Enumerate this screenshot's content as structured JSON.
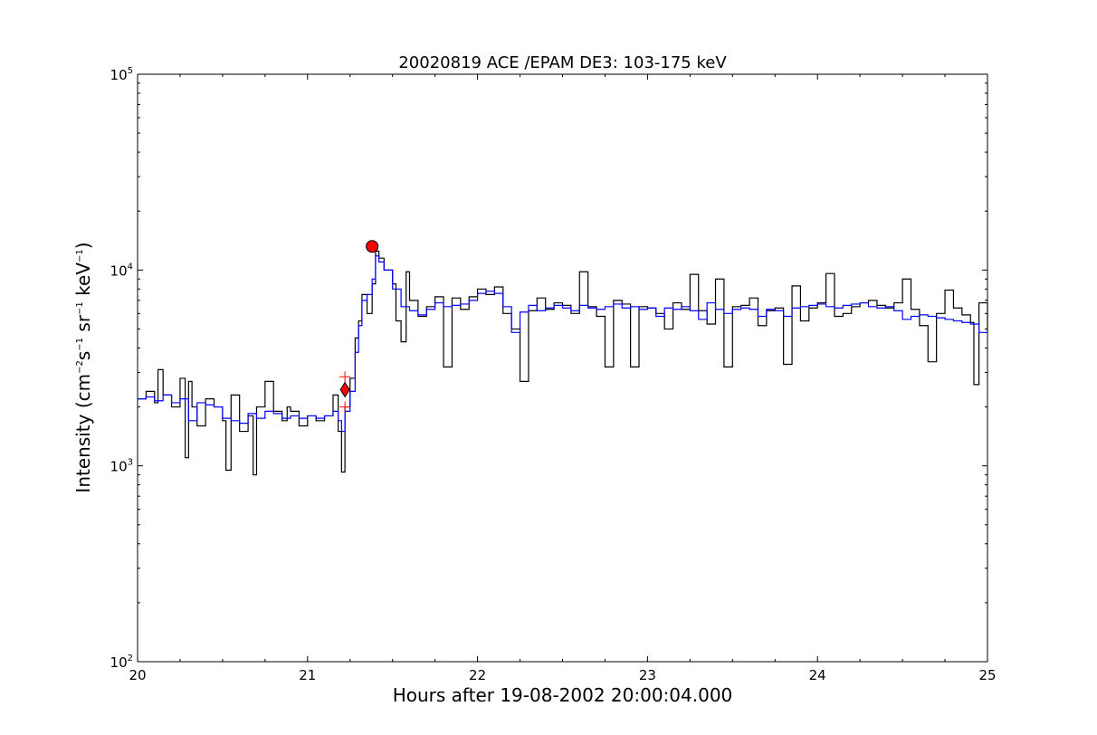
{
  "chart_data": {
    "type": "line",
    "title": "20020819 ACE /EPAM DE3: 103-175 keV",
    "xlabel": "Hours after 19-08-2002 20:00:04.000",
    "ylabel": {
      "lead": "Intensity (cm",
      "exp1": "−2",
      "mid1": "s",
      "exp2": "−1",
      "mid2": " sr",
      "exp3": "−1",
      "mid3": " keV",
      "exp4": "−1",
      "tail": ")"
    },
    "xlim": [
      20,
      25
    ],
    "ylim": [
      100,
      100000
    ],
    "yscale": "log",
    "grid": false,
    "x_ticks": [
      {
        "value": 20,
        "label": "20"
      },
      {
        "value": 21,
        "label": "21"
      },
      {
        "value": 22,
        "label": "22"
      },
      {
        "value": 23,
        "label": "23"
      },
      {
        "value": 24,
        "label": "24"
      },
      {
        "value": 25,
        "label": "25"
      }
    ],
    "y_ticks": [
      {
        "value": 100,
        "base": "10",
        "exp": "2"
      },
      {
        "value": 1000,
        "base": "10",
        "exp": "3"
      },
      {
        "value": 10000,
        "base": "10",
        "exp": "4"
      },
      {
        "value": 100000,
        "base": "10",
        "exp": "5"
      }
    ],
    "series": [
      {
        "style": "steps",
        "color": "#000000",
        "x": [
          20.0,
          20.05,
          20.1,
          20.12,
          20.15,
          20.2,
          20.25,
          20.28,
          20.3,
          20.32,
          20.35,
          20.4,
          20.45,
          20.5,
          20.52,
          20.55,
          20.6,
          20.65,
          20.68,
          20.7,
          20.75,
          20.8,
          20.85,
          20.88,
          20.9,
          20.95,
          21.0,
          21.05,
          21.1,
          21.15,
          21.18,
          21.2,
          21.22,
          21.25,
          21.28,
          21.3,
          21.32,
          21.35,
          21.38,
          21.4,
          21.42,
          21.45,
          21.5,
          21.52,
          21.55,
          21.58,
          21.6,
          21.65,
          21.7,
          21.75,
          21.8,
          21.85,
          21.9,
          21.95,
          22.0,
          22.05,
          22.1,
          22.15,
          22.2,
          22.25,
          22.3,
          22.35,
          22.4,
          22.45,
          22.5,
          22.55,
          22.6,
          22.65,
          22.7,
          22.75,
          22.8,
          22.85,
          22.9,
          22.95,
          23.0,
          23.05,
          23.1,
          23.15,
          23.2,
          23.25,
          23.3,
          23.35,
          23.4,
          23.45,
          23.5,
          23.55,
          23.6,
          23.65,
          23.7,
          23.75,
          23.8,
          23.85,
          23.9,
          23.95,
          24.0,
          24.05,
          24.1,
          24.15,
          24.2,
          24.25,
          24.3,
          24.35,
          24.4,
          24.45,
          24.5,
          24.55,
          24.6,
          24.65,
          24.7,
          24.75,
          24.8,
          24.85,
          24.9,
          24.92,
          24.95,
          25.0
        ],
        "y": [
          2200,
          2400,
          2100,
          3100,
          2300,
          2000,
          2800,
          1100,
          2700,
          2000,
          1600,
          2200,
          2000,
          1700,
          950,
          2300,
          1500,
          1800,
          900,
          2000,
          2700,
          1900,
          1700,
          2000,
          1900,
          1600,
          1800,
          1700,
          1800,
          2300,
          1500,
          930,
          2000,
          2800,
          4500,
          5500,
          7500,
          6000,
          8500,
          12500,
          11500,
          10000,
          8500,
          5500,
          4300,
          9800,
          7000,
          5800,
          6500,
          7300,
          3200,
          7200,
          6300,
          7300,
          8000,
          7500,
          8200,
          6000,
          5000,
          2700,
          6200,
          7200,
          6300,
          6800,
          6600,
          6000,
          9800,
          6500,
          5800,
          3200,
          7000,
          6700,
          3200,
          6500,
          6400,
          6000,
          5000,
          6800,
          6300,
          9500,
          6200,
          5300,
          9000,
          3200,
          6500,
          6600,
          7200,
          5200,
          6200,
          6400,
          3300,
          8300,
          5500,
          6400,
          6800,
          9600,
          5800,
          6000,
          6500,
          6800,
          7000,
          6600,
          6400,
          6800,
          9000,
          6300,
          5200,
          3400,
          6000,
          7900,
          6400,
          5900,
          5400,
          2600,
          6800,
          5000
        ]
      },
      {
        "style": "steps",
        "color": "#0000ff",
        "x": [
          20.0,
          20.05,
          20.1,
          20.15,
          20.2,
          20.25,
          20.3,
          20.35,
          20.4,
          20.45,
          20.5,
          20.55,
          20.6,
          20.65,
          20.7,
          20.75,
          20.8,
          20.85,
          20.9,
          20.95,
          21.0,
          21.05,
          21.1,
          21.15,
          21.18,
          21.2,
          21.22,
          21.25,
          21.28,
          21.3,
          21.32,
          21.35,
          21.38,
          21.4,
          21.42,
          21.45,
          21.5,
          21.55,
          21.6,
          21.65,
          21.7,
          21.75,
          21.8,
          21.85,
          21.9,
          21.95,
          22.0,
          22.05,
          22.1,
          22.15,
          22.2,
          22.25,
          22.3,
          22.35,
          22.4,
          22.45,
          22.5,
          22.55,
          22.6,
          22.65,
          22.7,
          22.75,
          22.8,
          22.85,
          22.9,
          22.95,
          23.0,
          23.05,
          23.1,
          23.15,
          23.2,
          23.25,
          23.3,
          23.35,
          23.4,
          23.45,
          23.5,
          23.55,
          23.6,
          23.65,
          23.7,
          23.75,
          23.8,
          23.85,
          23.9,
          23.95,
          24.0,
          24.05,
          24.1,
          24.15,
          24.2,
          24.25,
          24.3,
          24.35,
          24.4,
          24.45,
          24.5,
          24.55,
          24.6,
          24.65,
          24.7,
          24.75,
          24.8,
          24.85,
          24.9,
          24.95,
          25.0
        ],
        "y": [
          2200,
          2250,
          2150,
          2300,
          2100,
          2200,
          1700,
          2100,
          2050,
          2000,
          1750,
          1700,
          1650,
          1850,
          1750,
          1900,
          1850,
          1750,
          1800,
          1750,
          1800,
          1750,
          1800,
          1900,
          1700,
          1500,
          1900,
          2400,
          3800,
          5200,
          7000,
          7500,
          9000,
          11800,
          11000,
          10000,
          8000,
          6500,
          6200,
          5900,
          6300,
          6800,
          6500,
          6600,
          6700,
          7000,
          7600,
          7800,
          7600,
          6500,
          4800,
          6100,
          6600,
          6200,
          6400,
          6600,
          6400,
          6200,
          6600,
          6400,
          6300,
          6500,
          6700,
          6400,
          6500,
          6300,
          6400,
          5800,
          6400,
          6300,
          6500,
          6200,
          5600,
          6800,
          6300,
          6000,
          6300,
          6400,
          6300,
          5800,
          6300,
          6200,
          5800,
          6400,
          6500,
          6600,
          6700,
          6500,
          6400,
          6600,
          6700,
          6800,
          6500,
          6400,
          6500,
          6200,
          5600,
          5800,
          5900,
          5800,
          5700,
          5600,
          5500,
          5400,
          5300,
          4800,
          5000
        ]
      },
      {
        "style": "markers",
        "marker": "circle",
        "color": "#ff0000",
        "x": [
          21.38
        ],
        "y": [
          13200
        ]
      },
      {
        "style": "markers",
        "marker": "diamond",
        "color": "#ff0000",
        "x": [
          21.22
        ],
        "y": [
          2450
        ]
      },
      {
        "style": "markers",
        "marker": "plus",
        "color": "#ff0000",
        "x": [
          21.22,
          21.22
        ],
        "y": [
          2850,
          2000
        ]
      }
    ]
  }
}
